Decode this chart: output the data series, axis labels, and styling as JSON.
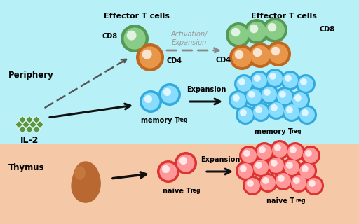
{
  "bg_top_color": "#b8f0f8",
  "bg_bottom_color": "#f5c8a8",
  "periphery_label": "Periphery",
  "thymus_label": "Thymus",
  "il2_label": "IL-2",
  "effector_title_left": "Effector T cells",
  "effector_title_right": "Effector T cells",
  "cd8_label": "CD8",
  "cd4_label": "CD4",
  "activation_label": "Activation/\nExpansion",
  "memory_label": "memory T",
  "expansion_top_label": "Expansion",
  "expansion_bottom_label": "Expansion",
  "naive_label": "naive T",
  "reg_sub": "reg",
  "cd8_fill": "#88cc88",
  "cd8_edge": "#559955",
  "cd4_fill": "#e8964a",
  "cd4_edge": "#c06820",
  "memory_fill": "#88ddff",
  "memory_edge": "#33aadd",
  "naive_fill": "#ff9999",
  "naive_edge": "#dd3333",
  "thymus_color": "#b86830",
  "thymus_highlight": "#d08848",
  "il2_color": "#559944",
  "arrow_color": "#111111",
  "dashed_arrow_color": "#888888",
  "activation_color": "#999999"
}
